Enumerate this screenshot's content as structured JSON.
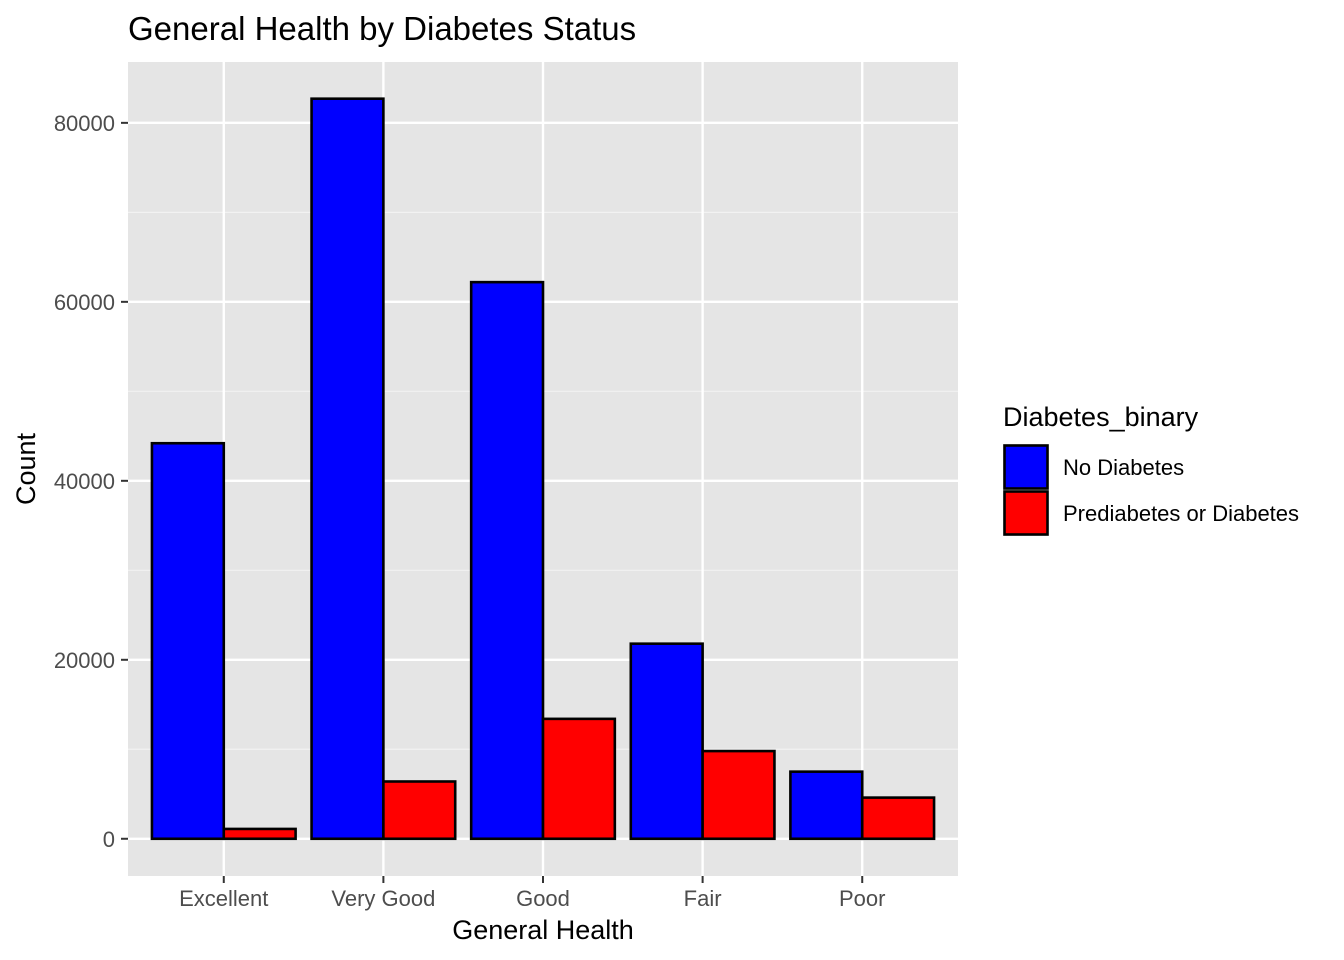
{
  "chart_data": {
    "type": "bar",
    "title": "General Health by Diabetes Status",
    "xlabel": "General Health",
    "ylabel": "Count",
    "categories": [
      "Excellent",
      "Very Good",
      "Good",
      "Fair",
      "Poor"
    ],
    "series": [
      {
        "name": "No Diabetes",
        "color": "#0000ff",
        "values": [
          44200,
          82700,
          62200,
          21800,
          7500
        ]
      },
      {
        "name": "Prediabetes or Diabetes",
        "color": "#ff0000",
        "values": [
          1100,
          6400,
          13400,
          9800,
          4600
        ]
      }
    ],
    "yticks": [
      0,
      20000,
      40000,
      60000,
      80000
    ],
    "ytick_labels": [
      "0",
      "20000",
      "40000",
      "60000",
      "80000"
    ],
    "ylim": [
      -4160,
      86800
    ],
    "grid": true,
    "legend": {
      "title": "Diabetes_binary",
      "position": "right"
    },
    "panel_background": "#e5e5e5",
    "bar_outline": "#000000"
  }
}
